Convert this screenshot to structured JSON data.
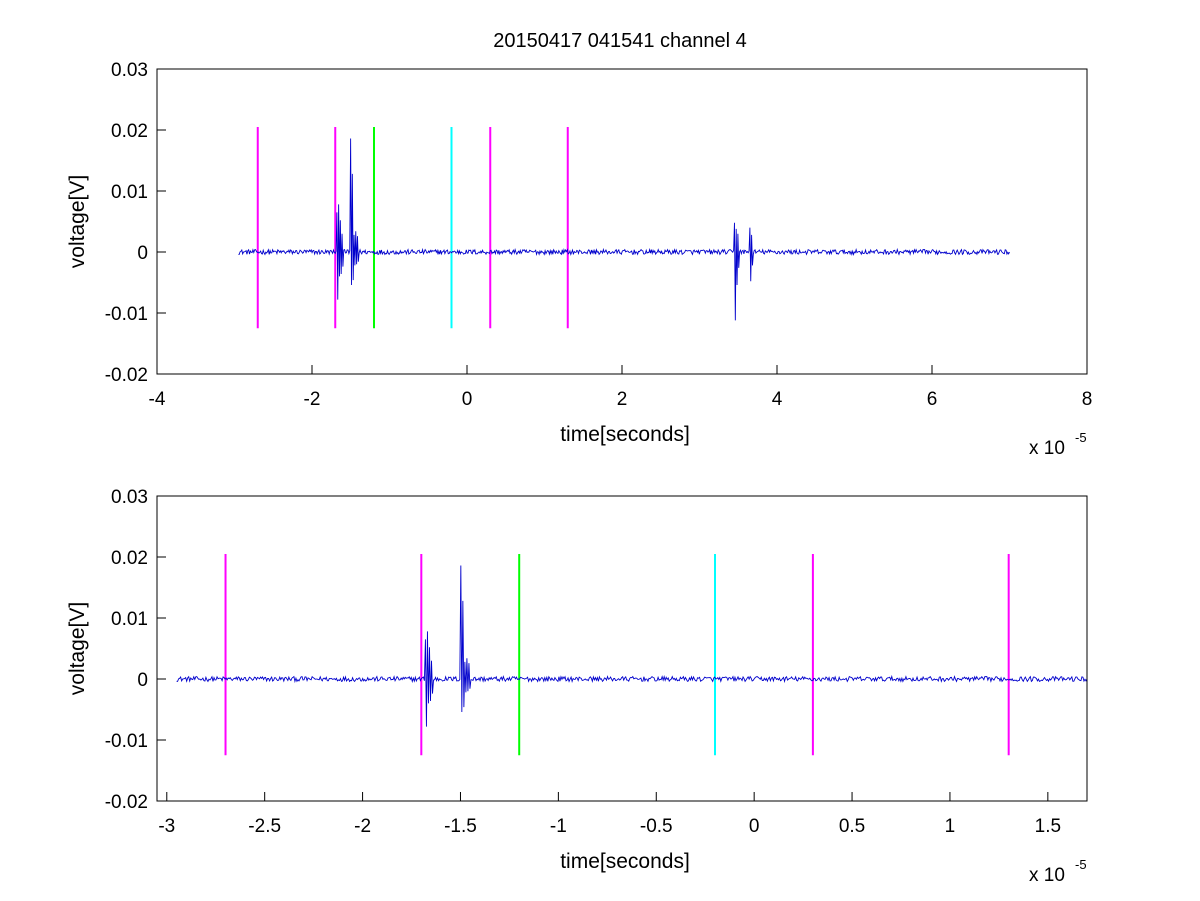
{
  "figure": {
    "title": "20150417 041541 channel 4"
  },
  "chart_data": [
    {
      "type": "line",
      "xlabel": "time[seconds]",
      "ylabel": "voltage[V]",
      "x_multiplier": "x 10",
      "x_exponent": "-5",
      "xlim": [
        -4,
        8
      ],
      "ylim": [
        -0.02,
        0.03
      ],
      "xticks": [
        -4,
        -2,
        0,
        2,
        4,
        6,
        8
      ],
      "xtick_labels": [
        "-4",
        "-2",
        "0",
        "2",
        "4",
        "6",
        "8"
      ],
      "yticks": [
        -0.02,
        -0.01,
        0,
        0.01,
        0.02,
        0.03
      ],
      "ytick_labels": [
        "-0.02",
        "-0.01",
        "0",
        "0.01",
        "0.02",
        "0.03"
      ],
      "grid": false,
      "series": [
        {
          "color": "#0000cc",
          "x_range": [
            -2.95,
            7.0
          ],
          "baseline": 0.0,
          "noise": 0.0004,
          "bursts": [
            {
              "x": -1.68,
              "values": [
                0.0065,
                -0.0078,
                0.0078,
                -0.004,
                0.0052,
                -0.0036,
                0.003,
                -0.0024
              ]
            },
            {
              "x": -1.5,
              "values": [
                0.0186,
                -0.0054,
                0.0128,
                -0.0046,
                0.0028,
                -0.0022,
                0.0034,
                -0.002,
                0.0026,
                -0.0016
              ]
            },
            {
              "x": 3.45,
              "values": [
                0.0048,
                -0.0112,
                0.0038,
                -0.0054,
                0.003,
                -0.0026
              ]
            },
            {
              "x": 3.65,
              "values": [
                0.004,
                -0.0048,
                0.0028,
                -0.0022
              ]
            }
          ]
        }
      ],
      "markers": [
        {
          "x": -2.7,
          "color": "#ff00ff",
          "y_range": [
            -0.0125,
            0.0205
          ]
        },
        {
          "x": -1.7,
          "color": "#ff00ff",
          "y_range": [
            -0.0125,
            0.0205
          ]
        },
        {
          "x": -1.2,
          "color": "#00ff00",
          "y_range": [
            -0.0125,
            0.0205
          ]
        },
        {
          "x": -0.2,
          "color": "#00ffff",
          "y_range": [
            -0.0125,
            0.0205
          ]
        },
        {
          "x": 0.3,
          "color": "#ff00ff",
          "y_range": [
            -0.0125,
            0.0205
          ]
        },
        {
          "x": 1.3,
          "color": "#ff00ff",
          "y_range": [
            -0.0125,
            0.0205
          ]
        }
      ]
    },
    {
      "type": "line",
      "xlabel": "time[seconds]",
      "ylabel": "voltage[V]",
      "x_multiplier": "x 10",
      "x_exponent": "-5",
      "xlim": [
        -3.05,
        1.7
      ],
      "ylim": [
        -0.02,
        0.03
      ],
      "xticks": [
        -3,
        -2.5,
        -2,
        -1.5,
        -1,
        -0.5,
        0,
        0.5,
        1,
        1.5
      ],
      "xtick_labels": [
        "-3",
        "-2.5",
        "-2",
        "-1.5",
        "-1",
        "-0.5",
        "0",
        "0.5",
        "1",
        "1.5"
      ],
      "yticks": [
        -0.02,
        -0.01,
        0,
        0.01,
        0.02,
        0.03
      ],
      "ytick_labels": [
        "-0.02",
        "-0.01",
        "0",
        "0.01",
        "0.02",
        "0.03"
      ],
      "grid": false,
      "series": [
        {
          "color": "#0000cc",
          "x_range": [
            -2.95,
            1.7
          ],
          "baseline": 0.0,
          "noise": 0.0004,
          "bursts": [
            {
              "x": -1.68,
              "values": [
                0.0065,
                -0.0078,
                0.0078,
                -0.004,
                0.0052,
                -0.0036,
                0.003,
                -0.0024
              ]
            },
            {
              "x": -1.5,
              "values": [
                0.0186,
                -0.0054,
                0.0128,
                -0.0046,
                0.0028,
                -0.0022,
                0.0034,
                -0.002,
                0.0026,
                -0.0016
              ]
            }
          ]
        }
      ],
      "markers": [
        {
          "x": -2.7,
          "color": "#ff00ff",
          "y_range": [
            -0.0125,
            0.0205
          ]
        },
        {
          "x": -1.7,
          "color": "#ff00ff",
          "y_range": [
            -0.0125,
            0.0205
          ]
        },
        {
          "x": -1.2,
          "color": "#00ff00",
          "y_range": [
            -0.0125,
            0.0205
          ]
        },
        {
          "x": -0.2,
          "color": "#00ffff",
          "y_range": [
            -0.0125,
            0.0205
          ]
        },
        {
          "x": 0.3,
          "color": "#ff00ff",
          "y_range": [
            -0.0125,
            0.0205
          ]
        },
        {
          "x": 1.3,
          "color": "#ff00ff",
          "y_range": [
            -0.0125,
            0.0205
          ]
        }
      ]
    }
  ]
}
